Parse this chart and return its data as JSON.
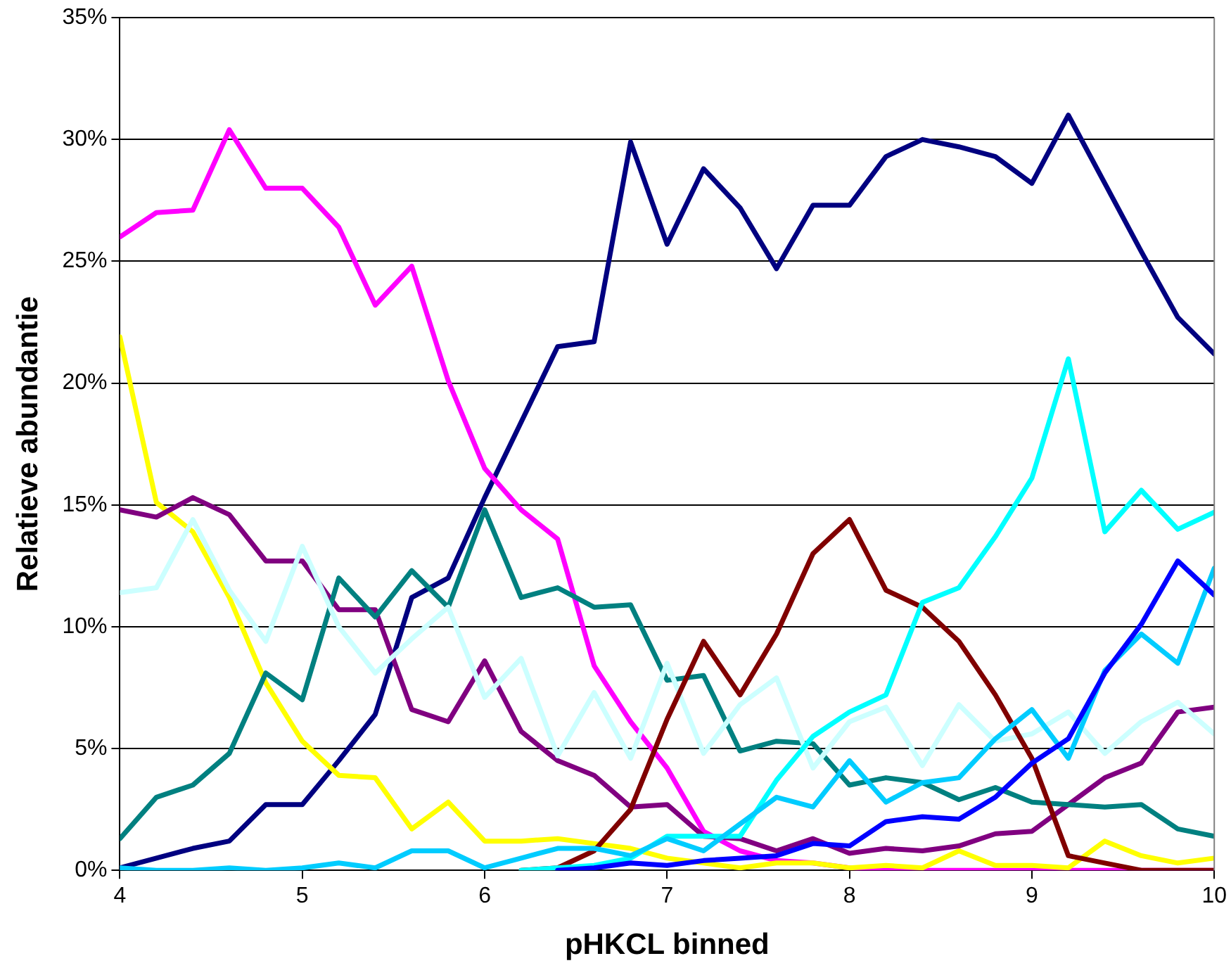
{
  "chart_data": {
    "type": "line",
    "xlabel": "pHKCL binned",
    "ylabel": "Relatieve abundantie",
    "x": [
      4,
      4.2,
      4.4,
      4.6,
      4.8,
      5,
      5.2,
      5.4,
      5.6,
      5.8,
      6,
      6.2,
      6.4,
      6.6,
      6.8,
      7,
      7.2,
      7.4,
      7.6,
      7.8,
      8,
      8.2,
      8.4,
      8.6,
      8.8,
      9,
      9.2,
      9.4,
      9.6,
      9.8,
      10
    ],
    "series": [
      {
        "color": "#000080",
        "values": [
          0.1,
          0.5,
          0.9,
          1.2,
          2.7,
          2.7,
          4.5,
          6.4,
          11.2,
          12.0,
          15.3,
          18.4,
          21.5,
          21.7,
          29.9,
          25.7,
          28.8,
          27.2,
          24.7,
          27.3,
          27.3,
          29.3,
          30.0,
          29.7,
          29.3,
          28.2,
          31.0,
          28.2,
          25.4,
          22.7,
          21.2
        ]
      },
      {
        "color": "#ff00ff",
        "values": [
          26.0,
          27.0,
          27.1,
          30.4,
          28.0,
          28.0,
          26.4,
          23.2,
          24.8,
          20.1,
          16.5,
          14.8,
          13.6,
          8.4,
          6.1,
          4.2,
          1.6,
          0.8,
          0.4,
          0.3,
          0.1,
          0,
          0,
          0,
          0,
          0,
          0,
          0,
          0,
          0,
          0
        ]
      },
      {
        "color": "#ffff00",
        "values": [
          21.9,
          15.1,
          13.9,
          11.2,
          7.7,
          5.3,
          3.9,
          3.8,
          1.7,
          2.8,
          1.2,
          1.2,
          1.3,
          1.1,
          0.9,
          0.5,
          0.3,
          0.1,
          0.3,
          0.3,
          0.1,
          0.2,
          0.1,
          0.8,
          0.2,
          0.2,
          0.1,
          1.2,
          0.6,
          0.3,
          0.5
        ]
      },
      {
        "color": "#800080",
        "values": [
          14.8,
          14.5,
          15.3,
          14.6,
          12.7,
          12.7,
          10.7,
          10.7,
          6.6,
          6.1,
          8.6,
          5.7,
          4.5,
          3.9,
          2.6,
          2.7,
          1.4,
          1.3,
          0.8,
          1.3,
          0.7,
          0.9,
          0.8,
          1.0,
          1.5,
          1.6,
          2.7,
          3.8,
          4.4,
          6.5,
          6.7
        ]
      },
      {
        "color": "#008080",
        "values": [
          1.3,
          3.0,
          3.5,
          4.8,
          8.1,
          7.0,
          12.0,
          10.4,
          12.3,
          10.8,
          14.8,
          11.2,
          11.6,
          10.8,
          10.9,
          7.8,
          8.0,
          4.9,
          5.3,
          5.2,
          3.5,
          3.8,
          3.6,
          2.9,
          3.4,
          2.8,
          2.7,
          2.6,
          2.7,
          1.7,
          1.4
        ]
      },
      {
        "color": "#ccffff",
        "values": [
          11.4,
          11.6,
          14.4,
          11.5,
          9.4,
          13.3,
          10.0,
          8.1,
          9.5,
          10.8,
          7.1,
          8.7,
          4.7,
          7.3,
          4.6,
          8.5,
          4.8,
          6.8,
          7.9,
          4.2,
          6.1,
          6.7,
          4.3,
          6.8,
          5.3,
          5.6,
          6.5,
          4.8,
          6.1,
          6.9,
          5.6
        ]
      },
      {
        "color": "#800000",
        "values": [
          null,
          null,
          null,
          null,
          null,
          null,
          null,
          null,
          null,
          null,
          null,
          0,
          0.1,
          0.8,
          2.5,
          6.2,
          9.4,
          7.2,
          9.7,
          13.0,
          14.4,
          11.5,
          10.8,
          9.4,
          7.2,
          4.6,
          0.6,
          0.3,
          0,
          0,
          0
        ]
      },
      {
        "color": "#00ffff",
        "values": [
          null,
          null,
          null,
          null,
          null,
          null,
          null,
          null,
          null,
          null,
          null,
          0,
          0.1,
          0.2,
          0.5,
          1.4,
          1.4,
          1.4,
          3.7,
          5.5,
          6.5,
          7.2,
          11.0,
          11.6,
          13.7,
          16.1,
          21.0,
          13.9,
          15.6,
          14.0,
          14.7
        ]
      },
      {
        "color": "#00ccff",
        "values": [
          0.1,
          0,
          0,
          0.1,
          0,
          0.1,
          0.3,
          0.1,
          0.8,
          0.8,
          0.1,
          0.5,
          0.9,
          0.9,
          0.6,
          1.3,
          0.8,
          1.9,
          3.0,
          2.6,
          4.5,
          2.8,
          3.6,
          3.8,
          5.4,
          6.6,
          4.6,
          8.2,
          9.7,
          8.5,
          12.4
        ]
      },
      {
        "color": "#0000ff",
        "values": [
          null,
          null,
          null,
          null,
          null,
          null,
          null,
          null,
          null,
          null,
          null,
          null,
          0,
          0.1,
          0.3,
          0.2,
          0.4,
          0.5,
          0.6,
          1.1,
          1.0,
          2.0,
          2.2,
          2.1,
          3.0,
          4.4,
          5.4,
          8.1,
          10.1,
          12.7,
          11.3
        ]
      }
    ],
    "xlim": [
      4,
      10
    ],
    "xticks": [
      4,
      5,
      6,
      7,
      8,
      9,
      10
    ],
    "ylim": [
      0,
      35
    ],
    "yticks": [
      {
        "value": 0,
        "label": "0%"
      },
      {
        "value": 5,
        "label": "5%"
      },
      {
        "value": 10,
        "label": "10%"
      },
      {
        "value": 15,
        "label": "15%"
      },
      {
        "value": 20,
        "label": "20%"
      },
      {
        "value": 25,
        "label": "25%"
      },
      {
        "value": 30,
        "label": "30%"
      },
      {
        "value": 35,
        "label": "35%"
      }
    ],
    "grid": "y",
    "legend": false,
    "marker": "none",
    "line_style": "solid"
  }
}
